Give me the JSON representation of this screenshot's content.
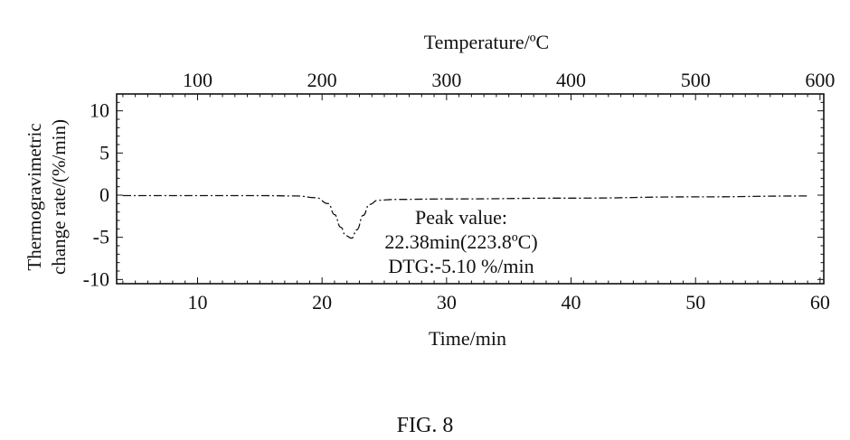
{
  "figure_caption": "FIG. 8",
  "chart_data": {
    "type": "line",
    "title": "",
    "xlabel": "Time/min",
    "top_xlabel": "Temperature/ºC",
    "ylabel_lines": [
      "Thermogravimetric",
      "change rate/(%/min)"
    ],
    "xlim": [
      3.5,
      60.3
    ],
    "ylim": [
      -10.5,
      12
    ],
    "x_ticks": [
      10,
      20,
      30,
      40,
      50,
      60
    ],
    "x_tick_labels": [
      "10",
      "20",
      "30",
      "40",
      "50",
      "60"
    ],
    "top_x_ticks": [
      100,
      200,
      300,
      400,
      500,
      600
    ],
    "top_x_tick_labels": [
      "100",
      "200",
      "300",
      "400",
      "500",
      "600"
    ],
    "top_x_positions_min": [
      10,
      20,
      30,
      40,
      50,
      60
    ],
    "y_ticks": [
      10,
      5,
      0,
      -5,
      -10
    ],
    "y_tick_labels": [
      "10",
      "5",
      "0",
      "-5",
      "-10"
    ],
    "grid": false,
    "line_style": "dash-dot",
    "series": [
      {
        "x": [
          4.0,
          10,
          15,
          18,
          19.5,
          20.5,
          21.0,
          21.5,
          21.9,
          22.38,
          22.8,
          23.3,
          23.8,
          24.5,
          26,
          30,
          40,
          50,
          59
        ],
        "y": [
          -0.05,
          -0.05,
          -0.05,
          -0.1,
          -0.3,
          -1.0,
          -2.3,
          -3.8,
          -4.8,
          -5.1,
          -4.1,
          -2.4,
          -1.1,
          -0.6,
          -0.5,
          -0.45,
          -0.35,
          -0.2,
          -0.1
        ]
      }
    ],
    "annotations": [
      {
        "text": "Peak value:"
      },
      {
        "text": "22.38min(223.8ºC)"
      },
      {
        "text": "DTG:-5.10 %/min"
      }
    ]
  }
}
